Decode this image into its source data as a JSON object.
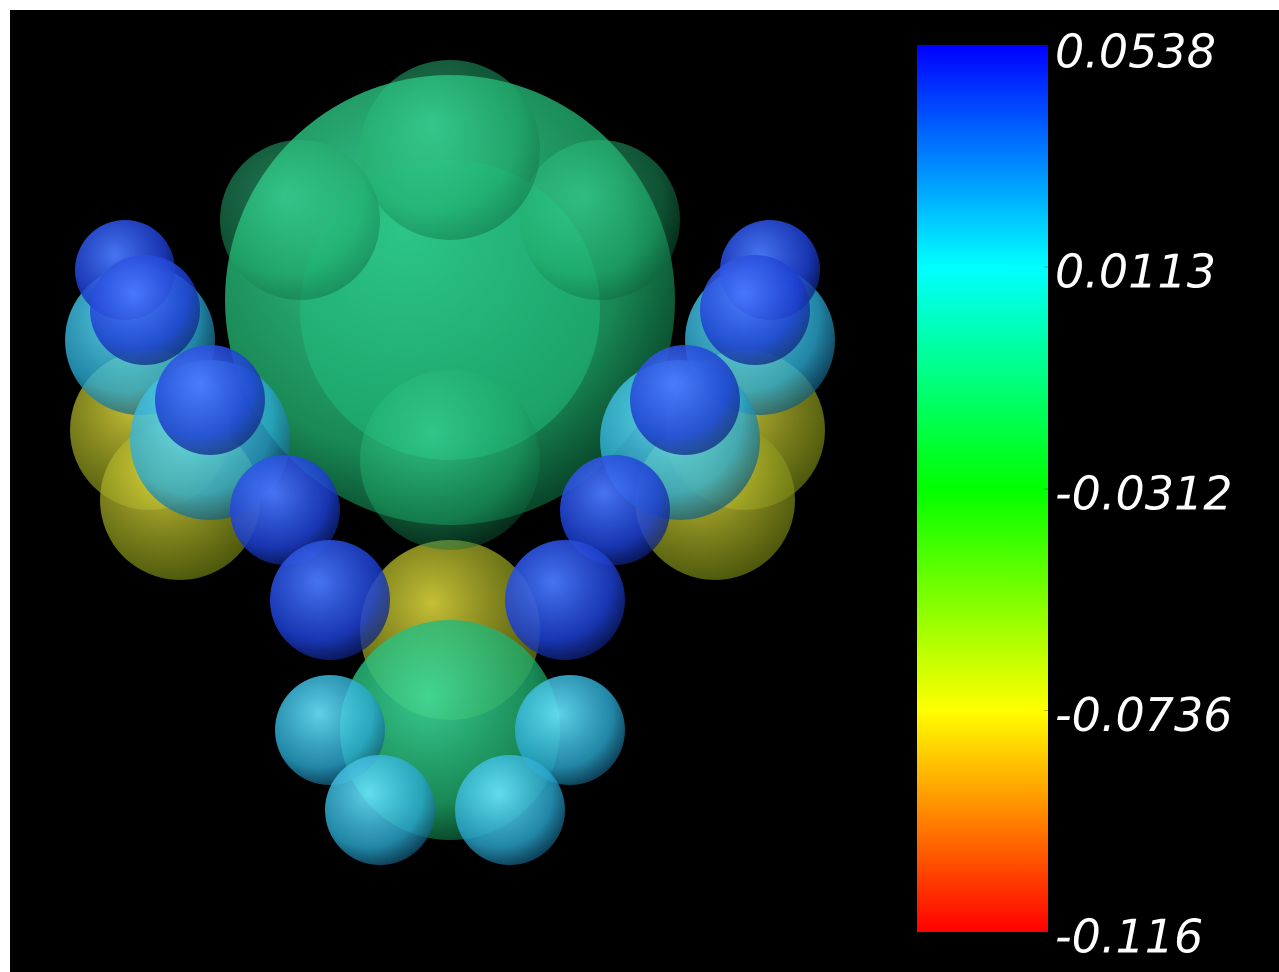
{
  "colorbar": {
    "ticks": [
      0.0538,
      0.0113,
      -0.0312,
      -0.0736,
      -0.116
    ]
  }
}
